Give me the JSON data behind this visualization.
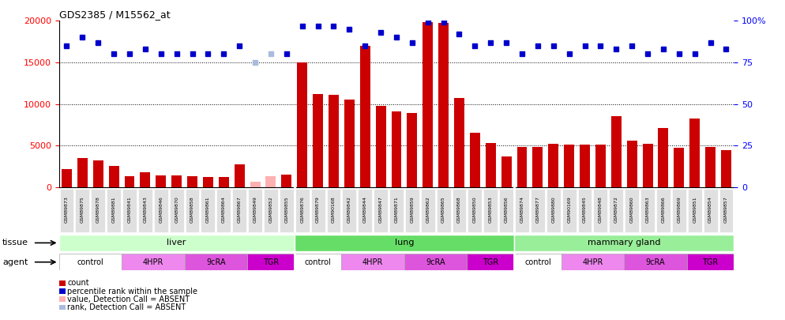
{
  "title": "GDS2385 / M15562_at",
  "samples": [
    "GSM89873",
    "GSM89875",
    "GSM89878",
    "GSM89881",
    "GSM89841",
    "GSM89843",
    "GSM89846",
    "GSM89870",
    "GSM89858",
    "GSM89861",
    "GSM89864",
    "GSM89867",
    "GSM89849",
    "GSM89852",
    "GSM89855",
    "GSM89876",
    "GSM89879",
    "GSM90168",
    "GSM89842",
    "GSM89844",
    "GSM89847",
    "GSM89871",
    "GSM89859",
    "GSM89862",
    "GSM89865",
    "GSM89868",
    "GSM89850",
    "GSM89853",
    "GSM89856",
    "GSM89874",
    "GSM89877",
    "GSM89880",
    "GSM90169",
    "GSM89845",
    "GSM89848",
    "GSM89872",
    "GSM89860",
    "GSM89863",
    "GSM89866",
    "GSM89869",
    "GSM89851",
    "GSM89854",
    "GSM89857"
  ],
  "counts": [
    2200,
    3550,
    3250,
    2550,
    1350,
    1800,
    1400,
    1400,
    1350,
    1250,
    1200,
    2750,
    700,
    1350,
    1550,
    15000,
    11200,
    11100,
    10500,
    17000,
    9800,
    9100,
    8900,
    19800,
    19700,
    10700,
    6500,
    5300,
    3700,
    4800,
    4800,
    5200,
    5100,
    5100,
    5100,
    8500,
    5600,
    5200,
    7100,
    4700,
    8300,
    4800,
    4500
  ],
  "absent_count_indices": [
    12,
    13
  ],
  "percentile_ranks": [
    85,
    90,
    87,
    80,
    80,
    83,
    80,
    80,
    80,
    80,
    80,
    85,
    75,
    80,
    80,
    97,
    97,
    97,
    95,
    85,
    93,
    90,
    87,
    99,
    99,
    92,
    85,
    87,
    87,
    80,
    85,
    85,
    80,
    85,
    85,
    83,
    85,
    80,
    83,
    80,
    80,
    87,
    83
  ],
  "absent_rank_indices": [
    12,
    13
  ],
  "ylim_left": [
    0,
    20000
  ],
  "ylim_right": [
    0,
    100
  ],
  "yticks_left": [
    0,
    5000,
    10000,
    15000,
    20000
  ],
  "yticks_right": [
    0,
    25,
    50,
    75,
    100
  ],
  "bar_color": "#CC0000",
  "absent_bar_color": "#FFB0B0",
  "dot_color": "#0000CC",
  "absent_dot_color": "#AABBDD",
  "tissue_defs": [
    {
      "name": "liver",
      "start": 0,
      "end": 14,
      "color": "#CCFFCC"
    },
    {
      "name": "lung",
      "start": 15,
      "end": 28,
      "color": "#66DD66"
    },
    {
      "name": "mammary gland",
      "start": 29,
      "end": 42,
      "color": "#99EE99"
    }
  ],
  "agent_defs": [
    {
      "name": "control",
      "start": 0,
      "end": 3,
      "color": "#FFFFFF"
    },
    {
      "name": "4HPR",
      "start": 4,
      "end": 7,
      "color": "#EE88EE"
    },
    {
      "name": "9cRA",
      "start": 8,
      "end": 11,
      "color": "#DD55DD"
    },
    {
      "name": "TGR",
      "start": 12,
      "end": 14,
      "color": "#CC00CC"
    },
    {
      "name": "control",
      "start": 15,
      "end": 17,
      "color": "#FFFFFF"
    },
    {
      "name": "4HPR",
      "start": 18,
      "end": 21,
      "color": "#EE88EE"
    },
    {
      "name": "9cRA",
      "start": 22,
      "end": 25,
      "color": "#DD55DD"
    },
    {
      "name": "TGR",
      "start": 26,
      "end": 28,
      "color": "#CC00CC"
    },
    {
      "name": "control",
      "start": 29,
      "end": 31,
      "color": "#FFFFFF"
    },
    {
      "name": "4HPR",
      "start": 32,
      "end": 35,
      "color": "#EE88EE"
    },
    {
      "name": "9cRA",
      "start": 36,
      "end": 39,
      "color": "#DD55DD"
    },
    {
      "name": "TGR",
      "start": 40,
      "end": 42,
      "color": "#CC00CC"
    }
  ],
  "legend_items": [
    {
      "label": "count",
      "color": "#CC0000"
    },
    {
      "label": "percentile rank within the sample",
      "color": "#0000CC"
    },
    {
      "label": "value, Detection Call = ABSENT",
      "color": "#FFB0B0"
    },
    {
      "label": "rank, Detection Call = ABSENT",
      "color": "#AABBDD"
    }
  ]
}
